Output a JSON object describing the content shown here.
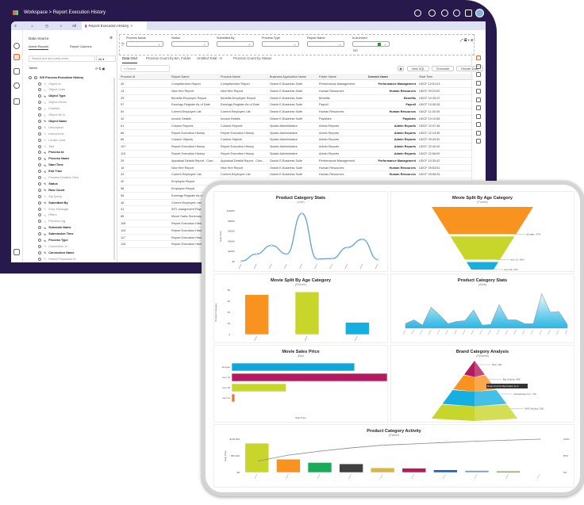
{
  "header": {
    "breadcrumb_root": "Workspace",
    "breadcrumb_sep": ">",
    "breadcrumb_page": "Report Execution History",
    "icons": [
      "accessibility-icon",
      "history-icon",
      "bell-icon",
      "settings-icon",
      "translate-icon",
      "avatar"
    ]
  },
  "tabs": {
    "all_label": "All",
    "active_tab": "Report Execution History",
    "close": "×"
  },
  "datasource": {
    "title": "Data Source",
    "tab_admin": "Admin Reports",
    "tab_columns": "Report Columns",
    "search_placeholder": "Search text and press enter",
    "scope": "All",
    "tables_label": "Tables",
    "root": "SIS Process Execution History",
    "fields": [
      {
        "name": "Object Id",
        "b": false
      },
      {
        "name": "Object Code",
        "b": false
      },
      {
        "name": "Object Type",
        "b": true
      },
      {
        "name": "Object Owner",
        "b": false
      },
      {
        "name": "Enabled",
        "b": false
      },
      {
        "name": "Object Mf Id",
        "b": false
      },
      {
        "name": "Object Name",
        "b": true
      },
      {
        "name": "Description",
        "b": false
      },
      {
        "name": "Instructions",
        "b": false
      },
      {
        "name": "Locale Code",
        "b": false
      },
      {
        "name": "Title",
        "b": false
      },
      {
        "name": "Process Id",
        "b": true
      },
      {
        "name": "Process Name",
        "b": true
      },
      {
        "name": "Start Time",
        "b": true
      },
      {
        "name": "End Time",
        "b": true
      },
      {
        "name": "Process Duration Hms",
        "b": false
      },
      {
        "name": "Status",
        "b": true
      },
      {
        "name": "Row Count",
        "b": true
      },
      {
        "name": "Sql Query",
        "b": false
      },
      {
        "name": "Submitted By",
        "b": true
      },
      {
        "name": "Error Message",
        "b": false
      },
      {
        "name": "Filters",
        "b": false
      },
      {
        "name": "Process Log",
        "b": false
      },
      {
        "name": "Schedule Name",
        "b": true
      },
      {
        "name": "Submission Time",
        "b": true
      },
      {
        "name": "Process Type",
        "b": true
      },
      {
        "name": "Connection Id",
        "b": false
      },
      {
        "name": "Connection Name",
        "b": true
      },
      {
        "name": "Parent Processes Id",
        "b": false
      }
    ]
  },
  "filters": [
    {
      "label": "Process Name",
      "value": ""
    },
    {
      "label": "Status",
      "value": ""
    },
    {
      "label": "Submitted By",
      "value": ""
    },
    {
      "label": "Process Type",
      "value": ""
    },
    {
      "label": "Report Name",
      "value": ""
    },
    {
      "label": "Is Archived",
      "value": "NO"
    }
  ],
  "grid_tabs": [
    "Data Grid",
    "Process Count by BA, Folder",
    "Untitled Total - 0",
    "Process Count by Status"
  ],
  "toolbar": {
    "search_placeholder": "Search",
    "view_sql": "View SQL",
    "terminate": "Terminate",
    "render_data": "Render Data"
  },
  "grid": {
    "columns": [
      "Process Id",
      "Report Name",
      "Process Name",
      "Business Application Name",
      "Folder Name",
      "Domain Name",
      "Start Time"
    ],
    "rows": [
      [
        "40",
        "Competencies Report",
        "Competencies Report",
        "Oracle E-Business Suite",
        "Performance Management",
        "Performance Management",
        "UDCF 10:51:03"
      ],
      [
        "13",
        "New Hire Report",
        "New Hire Report",
        "Oracle E-Business Suite",
        "Human Resources",
        "Human Resources",
        "UDCF 09:24:52"
      ],
      [
        "25",
        "Benefits Employee Report",
        "Benefits Employee Report",
        "Oracle E-Business Suite",
        "Benefits",
        "Benefits",
        "UDCF 10:25:22"
      ],
      [
        "57",
        "Earnings Register As of Date",
        "Earnings Register As of Date",
        "Oracle E-Business Suite",
        "Payroll",
        "Payroll",
        "UDCF 10:55:28"
      ],
      [
        "50",
        "Current Employee List",
        "Current Employee List",
        "Oracle E-Business Suite",
        "Human Resources",
        "Human Resources",
        "UDCF 11:00:09"
      ],
      [
        "32",
        "Invoice Details",
        "Invoice Details",
        "Oracle E-Business Suite",
        "Payables",
        "Payables",
        "UDCF 10:10:55"
      ],
      [
        "61",
        "Custom Reports",
        "Custom Reports",
        "Splash Administrator",
        "Admin Reports",
        "Admin Reports",
        "UDCF 22:07:48"
      ],
      [
        "68",
        "Report Execution History",
        "Report Execution History",
        "Splash Administrator",
        "Admin Reports",
        "Admin Reports",
        "UDCF 22:13:35"
      ],
      [
        "86",
        "Custom Objects",
        "Custom Objects",
        "Splash Administrator",
        "Admin Reports",
        "Admin Reports",
        "UDCF 09:49:52"
      ],
      [
        "107",
        "Report Execution History",
        "Report Execution History",
        "Splash Administrator",
        "Admin Reports",
        "Admin Reports",
        "UDCF 22:40:09"
      ],
      [
        "115",
        "Report Execution History",
        "Report Execution History",
        "Splash Administrator",
        "Admin Reports",
        "Admin Reports",
        "UDCF 22:56:09"
      ],
      [
        "29",
        "Appraisal Details Report - Com...",
        "Appraisal Details Report - Com...",
        "Oracle E-Business Suite",
        "Performance Management",
        "Performance Management",
        "UDCF 10:30:42"
      ],
      [
        "16",
        "New Hire Report",
        "New Hire Report",
        "Oracle E-Business Suite",
        "Human Resources",
        "Human Resources",
        "UDCF 09:53:51"
      ],
      [
        "24",
        "Current Employee List",
        "Current Employee List",
        "Oracle E-Business Suite",
        "Human Resources",
        "Human Resources",
        "UDCF 09:58:25"
      ],
      [
        "42",
        "Employee Report",
        "",
        "",
        "",
        "",
        ""
      ],
      [
        "58",
        "Employee Report",
        "",
        "",
        "",
        "",
        ""
      ],
      [
        "55",
        "Earnings Register As of...",
        "",
        "",
        "",
        "",
        ""
      ],
      [
        "46",
        "Current Employee List",
        "",
        "",
        "",
        "",
        ""
      ],
      [
        "41",
        "INTL Assignment Payroll",
        "",
        "",
        "",
        "",
        ""
      ],
      [
        "85",
        "Movie Sales Summary",
        "",
        "",
        "",
        "",
        ""
      ],
      [
        "108",
        "Report Execution History",
        "",
        "",
        "",
        "",
        ""
      ],
      [
        "104",
        "Report Execution History",
        "",
        "",
        "",
        "",
        ""
      ],
      [
        "117",
        "Report Execution History",
        "",
        "",
        "",
        "",
        ""
      ],
      [
        "118",
        "Report Execution History",
        "",
        "",
        "",
        "",
        ""
      ]
    ]
  },
  "colors": {
    "frame": "#28194d",
    "accent": "#f26522",
    "orange": "#f7931e",
    "lime": "#c8d62b",
    "cyan": "#15b0e0",
    "magenta": "#b5195e"
  },
  "chart_data": [
    {
      "type": "line",
      "title": "Product Category Stats",
      "subtitle": "(Line)",
      "ylabel": "Sale Price",
      "yticks": [
        "$0",
        "$200K",
        "$400K",
        "$600K",
        "$800K",
        "$1000K"
      ],
      "ylim": [
        0,
        1000
      ],
      "values": [
        10,
        150,
        320,
        150,
        950,
        50,
        60,
        280,
        440,
        40
      ]
    },
    {
      "type": "funnel",
      "title": "Movie Split By Age Category",
      "subtitle": "(Funnel)",
      "slices": [
        {
          "label": "all ages, 47%",
          "value": 47,
          "color": "#f7931e"
        },
        {
          "label": "over 12, 40%",
          "value": 40,
          "color": "#c8d62b"
        },
        {
          "label": "over 18, 13%",
          "value": 13,
          "color": "#15b0e0"
        }
      ]
    },
    {
      "type": "bar",
      "title": "Movie Split By Age Category",
      "subtitle": "(Column)",
      "ylabel": "Product Category",
      "yticks": [
        "0",
        "20",
        "40",
        "60",
        "80"
      ],
      "ylim": [
        0,
        80
      ],
      "values": [
        72,
        77,
        22
      ],
      "colors": [
        "#f7931e",
        "#c8d62b",
        "#15b0e0"
      ]
    },
    {
      "type": "area",
      "title": "Product Category Stats",
      "subtitle": "(Area)",
      "ylim": [
        0,
        100
      ],
      "values": [
        12,
        22,
        8,
        55,
        35,
        12,
        18,
        20,
        48,
        8,
        10,
        62,
        22,
        22,
        12,
        12,
        90,
        42,
        44,
        10
      ]
    },
    {
      "type": "bar",
      "orientation": "horizontal",
      "title": "Movie Sales Price",
      "subtitle": "(Bar)",
      "xlabel": "Sale Price",
      "categories": [
        "all ages",
        "over 12",
        "over 18",
        "over 21"
      ],
      "values": [
        79,
        100,
        35,
        2
      ],
      "colors": [
        "#0fa7d9",
        "#b5195e",
        "#c8d62b",
        "#e07b39"
      ],
      "xlim": [
        0,
        100
      ]
    },
    {
      "type": "pyramid",
      "title": "Brand Category Analysis",
      "subtitle": "(Pyramid)",
      "slices": [
        {
          "label": "MxF, 10K",
          "color": "#b5195e"
        },
        {
          "label": "Big Studios, 45K",
          "color": "#f7931e"
        },
        {
          "label": "Paradoxdev Inc., 71K",
          "color": "#15b0e0"
        },
        {
          "label": "MAF Studios, 92K",
          "color": "#c8d62b"
        }
      ],
      "tooltip": "Movie Count for Big Studios: 4x,xx"
    },
    {
      "type": "bar",
      "title": "Product Category Activity",
      "subtitle": "(Pareto)",
      "ylabel": "Sale Price",
      "yticks": [
        "$0",
        "$50,000",
        "$100,000"
      ],
      "y2ticks": [
        "0%",
        "50%",
        "100%"
      ],
      "ylim": [
        0,
        100000
      ],
      "values": [
        88000,
        40000,
        30000,
        26000,
        14000,
        13000,
        8000,
        6000,
        4000,
        1000
      ],
      "cumulative_pct": [
        34,
        52,
        64,
        74,
        82,
        86,
        90,
        94,
        97,
        100
      ],
      "colors": [
        "#c8d62b",
        "#f7931e",
        "#1aab5a",
        "#404040",
        "#d9b44a",
        "#b8195a",
        "#1565c0",
        "#7f9cb8",
        "#4f9a10",
        "#f0d890"
      ]
    }
  ]
}
